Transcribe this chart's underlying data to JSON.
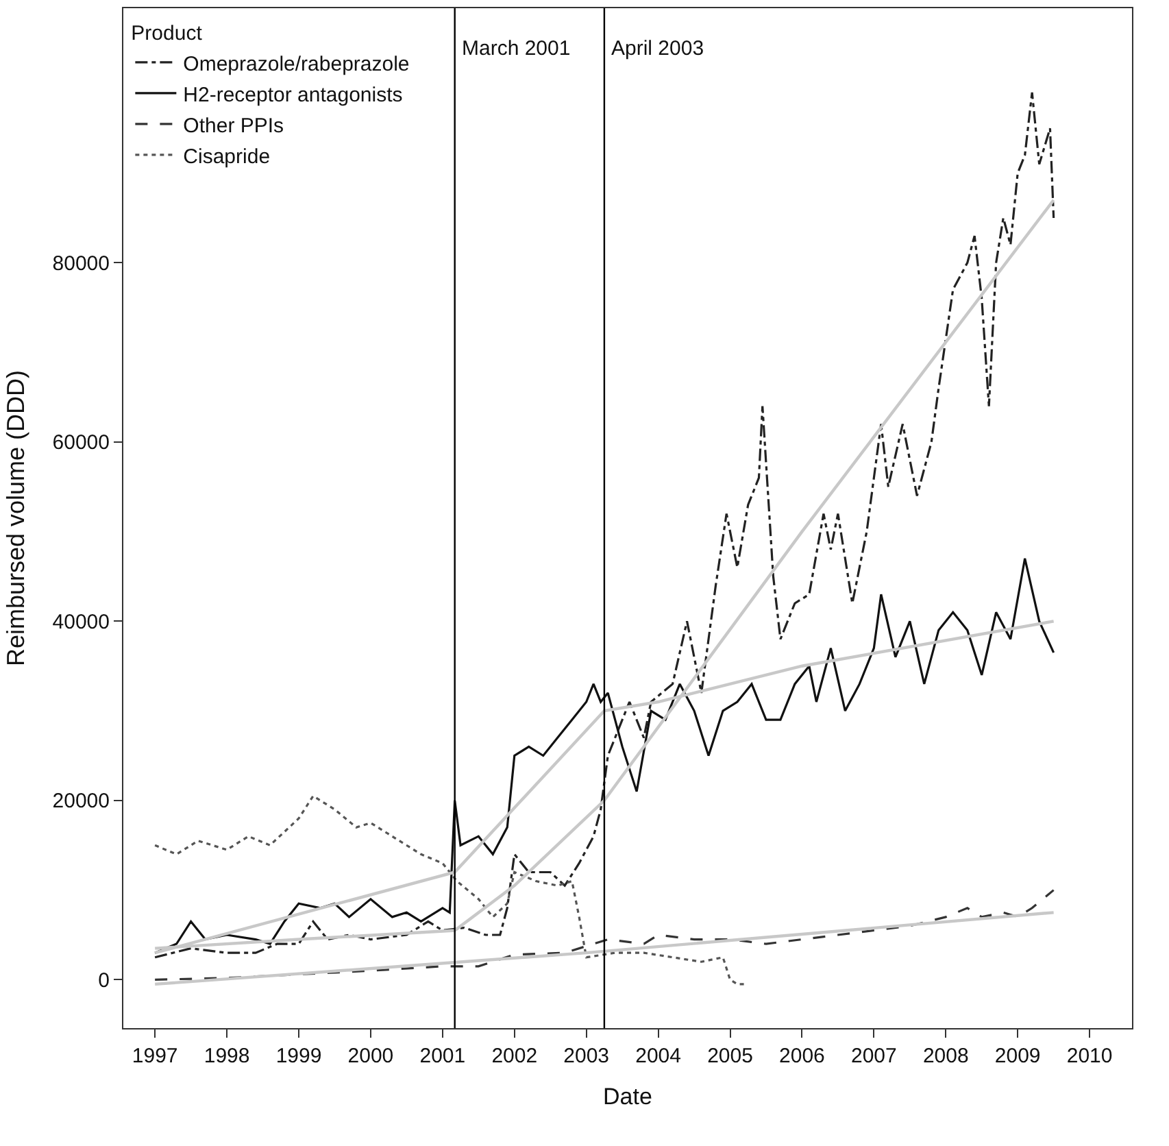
{
  "chart_data": {
    "type": "line",
    "xlabel": "Date",
    "ylabel": "Reimbursed volume (DDD)",
    "legend_title": "Product",
    "legend": "top left",
    "grid": false,
    "marker": "none",
    "xlim": [
      1996.56,
      2010.59
    ],
    "xticks": [
      1997,
      1998,
      1999,
      2000,
      2001,
      2002,
      2003,
      2004,
      2005,
      2006,
      2007,
      2008,
      2009,
      2010
    ],
    "ylim": [
      -5400,
      108400
    ],
    "yticks": [
      0,
      20000,
      40000,
      60000,
      80000
    ],
    "ref_lines": [
      {
        "axis": "x",
        "value": 2001.17,
        "label": "March 2001",
        "color": "#000000",
        "line_style": "solid"
      },
      {
        "axis": "x",
        "value": 2003.25,
        "label": "April 2003",
        "color": "#000000",
        "line_style": "solid"
      }
    ],
    "series": [
      {
        "name": "Omeprazole/rabeprazole",
        "color": "#222222",
        "line_style": "dashdot",
        "x": [
          1997,
          1997.5,
          1998,
          1998.4,
          1998.7,
          1999,
          1999.2,
          1999.4,
          1999.7,
          2000,
          2000.5,
          2000.8,
          2001,
          2001.3,
          2001.6,
          2001.8,
          2001.9,
          2002,
          2002.2,
          2002.5,
          2002.7,
          2002.9,
          2003.1,
          2003.2,
          2003.3,
          2003.6,
          2003.8,
          2003.9,
          2004.2,
          2004.4,
          2004.6,
          2004.8,
          2004.95,
          2005.1,
          2005.25,
          2005.4,
          2005.45,
          2005.6,
          2005.7,
          2005.9,
          2006.1,
          2006.3,
          2006.4,
          2006.5,
          2006.7,
          2006.9,
          2007,
          2007.1,
          2007.2,
          2007.4,
          2007.6,
          2007.8,
          2007.9,
          2008.1,
          2008.3,
          2008.4,
          2008.5,
          2008.6,
          2008.7,
          2008.8,
          2008.9,
          2009,
          2009.1,
          2009.2,
          2009.3,
          2009.45,
          2009.5
        ],
        "values": [
          2500,
          3500,
          3000,
          3000,
          4000,
          4000,
          6500,
          4500,
          5000,
          4500,
          5000,
          6500,
          5500,
          5800,
          5000,
          5000,
          8000,
          14000,
          12000,
          12000,
          10500,
          13000,
          16000,
          19000,
          25000,
          31000,
          27000,
          31000,
          33000,
          40000,
          32000,
          44000,
          52000,
          46000,
          53000,
          56000,
          64000,
          45000,
          38000,
          42000,
          43000,
          52000,
          48000,
          52000,
          42000,
          50000,
          56000,
          62000,
          55000,
          62000,
          54000,
          60000,
          66000,
          77000,
          80000,
          83000,
          76000,
          64000,
          80000,
          85000,
          82000,
          90000,
          92000,
          99000,
          91000,
          95000,
          85000
        ]
      },
      {
        "name": "H2-receptor antagonists",
        "color": "#111111",
        "line_style": "solid",
        "x": [
          1997,
          1997.3,
          1997.5,
          1997.7,
          1998,
          1998.4,
          1998.6,
          1998.8,
          1999,
          1999.3,
          1999.5,
          1999.7,
          2000,
          2000.3,
          2000.5,
          2000.7,
          2001,
          2001.1,
          2001.17,
          2001.25,
          2001.5,
          2001.7,
          2001.9,
          2002,
          2002.2,
          2002.4,
          2002.6,
          2002.8,
          2003,
          2003.1,
          2003.2,
          2003.3,
          2003.5,
          2003.7,
          2003.9,
          2004.1,
          2004.3,
          2004.5,
          2004.7,
          2004.9,
          2005.1,
          2005.3,
          2005.5,
          2005.7,
          2005.9,
          2006.1,
          2006.2,
          2006.4,
          2006.6,
          2006.8,
          2007,
          2007.1,
          2007.3,
          2007.5,
          2007.7,
          2007.9,
          2008.1,
          2008.3,
          2008.5,
          2008.7,
          2008.9,
          2009.1,
          2009.3,
          2009.5
        ],
        "values": [
          3000,
          4000,
          6500,
          4500,
          5000,
          4500,
          4000,
          6500,
          8500,
          8000,
          8500,
          7000,
          9000,
          7000,
          7500,
          6500,
          8000,
          7500,
          20000,
          15000,
          16000,
          14000,
          17000,
          25000,
          26000,
          25000,
          27000,
          29000,
          31000,
          33000,
          31000,
          32000,
          26000,
          21000,
          30000,
          29000,
          33000,
          30000,
          25000,
          30000,
          31000,
          33000,
          29000,
          29000,
          33000,
          35000,
          31000,
          37000,
          30000,
          33000,
          37000,
          43000,
          36000,
          40000,
          33000,
          39000,
          41000,
          39000,
          34000,
          41000,
          38000,
          47000,
          40000,
          36500
        ]
      },
      {
        "name": "Other PPIs",
        "color": "#333333",
        "line_style": "dash",
        "x": [
          1997,
          1998,
          1999,
          2000,
          2001,
          2001.5,
          2002,
          2002.7,
          2003.3,
          2003.8,
          2004,
          2004.5,
          2005,
          2005.5,
          2006,
          2006.5,
          2007,
          2007.5,
          2008,
          2008.3,
          2008.5,
          2008.8,
          2009,
          2009.2,
          2009.5
        ],
        "values": [
          0,
          200,
          600,
          1000,
          1500,
          1500,
          2800,
          3000,
          4500,
          4000,
          5000,
          4500,
          4500,
          4000,
          4500,
          5000,
          5500,
          6000,
          7000,
          8000,
          7000,
          7500,
          7000,
          8000,
          10000
        ]
      },
      {
        "name": "Cisapride",
        "color": "#555555",
        "line_style": "dot",
        "x": [
          1997,
          1997.3,
          1997.6,
          1998,
          1998.3,
          1998.6,
          1999,
          1999.2,
          1999.5,
          1999.8,
          2000,
          2000.2,
          2000.5,
          2000.7,
          2001,
          2001.2,
          2001.5,
          2001.7,
          2001.9,
          2002,
          2002.3,
          2002.6,
          2002.8,
          2002.9,
          2003,
          2003.4,
          2003.8,
          2004.2,
          2004.6,
          2004.9,
          2005,
          2005.1,
          2005.2
        ],
        "values": [
          15000,
          14000,
          15500,
          14500,
          16000,
          15000,
          18000,
          20500,
          19000,
          17000,
          17500,
          16500,
          15000,
          14000,
          13000,
          11000,
          9000,
          7000,
          8500,
          12000,
          11000,
          10500,
          11000,
          7000,
          2500,
          3000,
          3000,
          2500,
          2000,
          2500,
          0,
          -500,
          -500
        ]
      },
      {
        "color": "#c8c8c8",
        "line_style": "solid",
        "x": [
          1997,
          1999,
          2001.17,
          2002,
          2003.25,
          2006,
          2009.5
        ],
        "values": [
          3500,
          4500,
          5500,
          10500,
          20000,
          50000,
          87000
        ]
      },
      {
        "color": "#c8c8c8",
        "line_style": "solid",
        "x": [
          1997,
          2001.17,
          2003.25,
          2004,
          2006,
          2009.5
        ],
        "values": [
          3000,
          12000,
          30000,
          31000,
          35000,
          40000
        ]
      },
      {
        "color": "#c8c8c8",
        "line_style": "solid",
        "x": [
          1997,
          2003,
          2009.5
        ],
        "values": [
          -500,
          3000,
          7500
        ]
      }
    ]
  }
}
